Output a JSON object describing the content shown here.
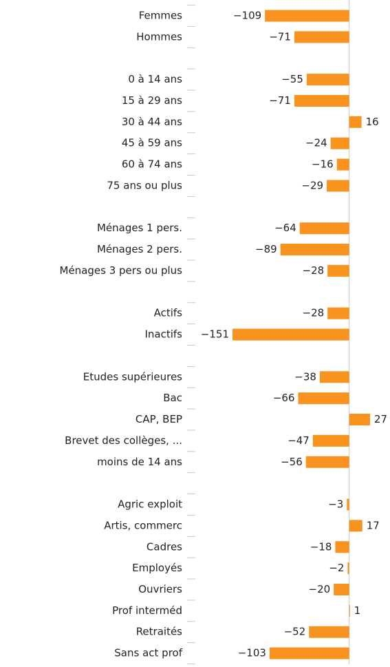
{
  "chart_data": {
    "type": "bar",
    "orientation": "horizontal",
    "color": "#f7931e",
    "categories": [
      "Femmes",
      "Hommes",
      null,
      "0 à 14 ans",
      "15 à 29 ans",
      "30 à 44 ans",
      "45 à 59 ans",
      "60 à 74 ans",
      "75 ans ou plus",
      null,
      "Ménages 1 pers.",
      "Ménages 2 pers.",
      "Ménages 3 pers ou plus",
      null,
      "Actifs",
      "Inactifs",
      null,
      "Etudes supérieures",
      "Bac",
      "CAP, BEP",
      "Brevet des collèges, ...",
      "moins de 14 ans",
      null,
      "Agric exploit",
      "Artis, commerc",
      "Cadres",
      "Employés",
      "Ouvriers",
      "Prof interméd",
      "Retraités",
      "Sans act prof"
    ],
    "values": [
      -109,
      -71,
      null,
      -55,
      -71,
      16,
      -24,
      -16,
      -29,
      null,
      -64,
      -89,
      -28,
      null,
      -28,
      -151,
      null,
      -38,
      -66,
      27,
      -47,
      -56,
      null,
      -3,
      17,
      -18,
      -2,
      -20,
      1,
      -52,
      -103
    ],
    "value_labels": [
      "−109",
      "−71",
      null,
      "−55",
      "−71",
      "16",
      "−24",
      "−16",
      "−29",
      null,
      "−64",
      "−89",
      "−28",
      null,
      "−28",
      "−151",
      null,
      "−38",
      "−66",
      "27",
      "−47",
      "−56",
      null,
      "−3",
      "17",
      "−18",
      "−2",
      "−20",
      "1",
      "−52",
      "−103"
    ]
  }
}
